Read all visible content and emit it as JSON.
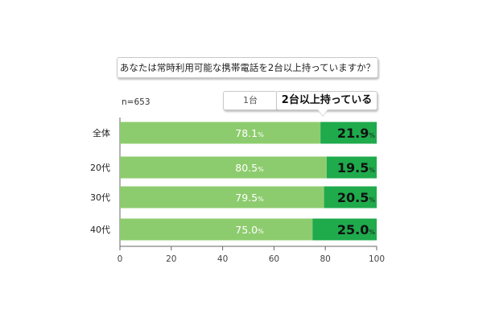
{
  "question": "あなたは常時利用可能な携帯電話を2台以上持っていますか？",
  "sample_size": "n=653",
  "legend": {
    "one": "1台",
    "two": "2台以上持っている"
  },
  "colors": {
    "one_device": "#8dcc6e",
    "two_plus": "#1faa4c",
    "axis": "#666666"
  },
  "chart_data": {
    "type": "bar",
    "orientation": "horizontal",
    "stacked": true,
    "categories": [
      "全体",
      "20代",
      "30代",
      "40代"
    ],
    "series": [
      {
        "name": "1台",
        "values": [
          78.1,
          80.5,
          79.5,
          75.0
        ]
      },
      {
        "name": "2台以上持っている",
        "values": [
          21.9,
          19.5,
          20.5,
          25.0
        ]
      }
    ],
    "xlim": [
      0,
      100
    ],
    "xticks": [
      0,
      20,
      40,
      60,
      80,
      100
    ],
    "value_labels": [
      [
        "78.1",
        "80.5",
        "79.5",
        "75.0"
      ],
      [
        "21.9",
        "19.5",
        "20.5",
        "25.0"
      ]
    ],
    "unit": "%",
    "grid": false
  }
}
